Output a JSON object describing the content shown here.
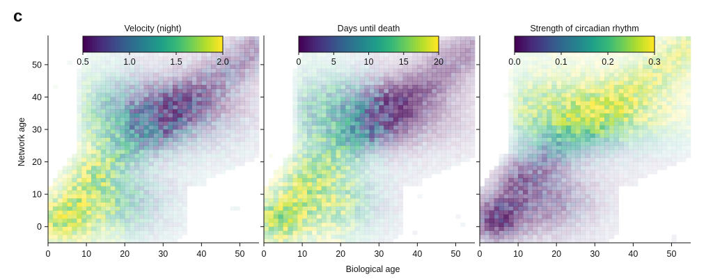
{
  "panel_label": "c",
  "colors": {
    "viridis": [
      "#440154",
      "#482878",
      "#3e4989",
      "#31688e",
      "#26828e",
      "#1f9e89",
      "#35b779",
      "#6ece58",
      "#b5de2b",
      "#fde725"
    ],
    "axis": "#111111",
    "background": "#ffffff"
  },
  "chart_data": [
    {
      "type": "heatmap",
      "title": "Velocity (night)",
      "xlabel": "",
      "ylabel": "Network age",
      "xlim": [
        0,
        55
      ],
      "ylim": [
        -5,
        59
      ],
      "x_ticks": [
        0,
        10,
        20,
        30,
        40,
        50
      ],
      "y_ticks": [
        0,
        10,
        20,
        30,
        40,
        50
      ],
      "colorbar": {
        "label": "Velocity (night)",
        "range": [
          0.5,
          2.0
        ],
        "ticks": [
          "0.5",
          "1.0",
          "1.5",
          "2.0"
        ],
        "colormap": "viridis"
      },
      "color_trend": "high values at young ages, low values at older ages"
    },
    {
      "type": "heatmap",
      "title": "Days until death",
      "xlabel": "Biological age",
      "ylabel": "",
      "xlim": [
        0,
        55
      ],
      "ylim": [
        -5,
        59
      ],
      "x_ticks": [
        0,
        10,
        20,
        30,
        40,
        50
      ],
      "y_ticks": [
        0,
        10,
        20,
        30,
        40,
        50
      ],
      "colorbar": {
        "label": "Days until death",
        "range": [
          0,
          20
        ],
        "ticks": [
          "0",
          "5",
          "10",
          "15",
          "20"
        ],
        "colormap": "viridis"
      },
      "color_trend": "high values at young ages and low network age, low values at older ages"
    },
    {
      "type": "heatmap",
      "title": "Strength of circadian rhythm",
      "xlabel": "",
      "ylabel": "",
      "xlim": [
        0,
        55
      ],
      "ylim": [
        -5,
        59
      ],
      "x_ticks": [
        0,
        10,
        20,
        30,
        40,
        50
      ],
      "y_ticks": [
        0,
        10,
        20,
        30,
        40,
        50
      ],
      "colorbar": {
        "label": "Strength of circadian rhythm",
        "range": [
          0.0,
          0.3
        ],
        "ticks": [
          "0.0",
          "0.1",
          "0.2",
          "0.3"
        ],
        "colormap": "viridis"
      },
      "color_trend": "low values at low network age, high values at high network age"
    }
  ]
}
